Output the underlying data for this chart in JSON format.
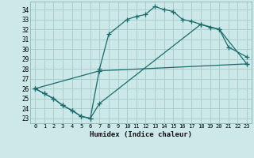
{
  "xlabel": "Humidex (Indice chaleur)",
  "ylabel": "",
  "bg_color": "#cce8e8",
  "grid_color": "#aacfcf",
  "line_color": "#1a6b6b",
  "xlim": [
    -0.5,
    23.5
  ],
  "ylim": [
    22.5,
    34.8
  ],
  "yticks": [
    23,
    24,
    25,
    26,
    27,
    28,
    29,
    30,
    31,
    32,
    33,
    34
  ],
  "xticks": [
    0,
    1,
    2,
    3,
    4,
    5,
    6,
    7,
    8,
    9,
    10,
    11,
    12,
    13,
    14,
    15,
    16,
    17,
    18,
    19,
    20,
    21,
    22,
    23
  ],
  "curve1_x": [
    0,
    1,
    2,
    3,
    4,
    5,
    6,
    7,
    8,
    10,
    11,
    12,
    13,
    14,
    15,
    16,
    17,
    18,
    19,
    20,
    21,
    23
  ],
  "curve1_y": [
    26.0,
    25.5,
    25.0,
    24.3,
    23.8,
    23.2,
    23.0,
    28.0,
    31.5,
    33.0,
    33.3,
    33.5,
    34.3,
    34.0,
    33.8,
    33.0,
    32.8,
    32.5,
    32.2,
    32.0,
    30.2,
    29.2
  ],
  "curve2_x": [
    0,
    1,
    2,
    3,
    4,
    5,
    6,
    7,
    18,
    20,
    23
  ],
  "curve2_y": [
    26.0,
    25.5,
    25.0,
    24.3,
    23.8,
    23.2,
    23.0,
    24.5,
    32.5,
    32.0,
    28.5
  ],
  "curve3_x": [
    0,
    7,
    23
  ],
  "curve3_y": [
    26.0,
    27.8,
    28.5
  ]
}
